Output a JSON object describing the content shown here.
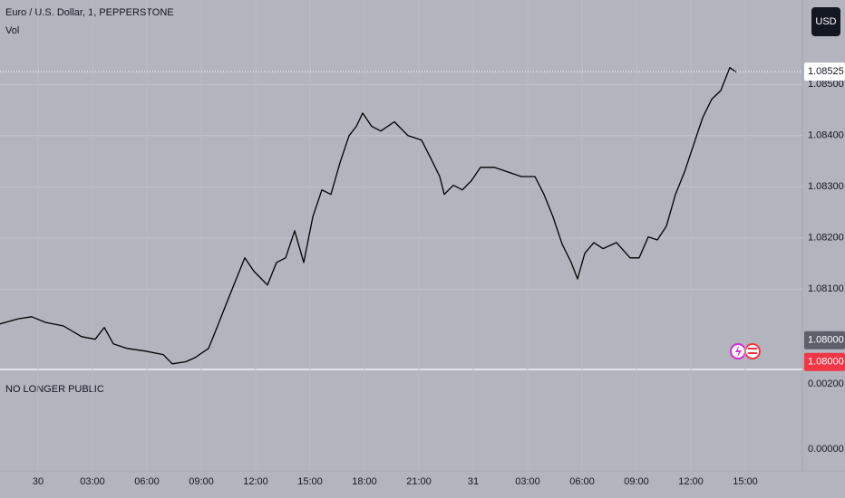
{
  "chart_data": {
    "type": "line",
    "title": "Euro / U.S. Dollar, 1, PEPPERSTONE",
    "subtitle": "Vol",
    "currency": "USD",
    "color": "#000000",
    "grid": true,
    "xlim": [
      -2.1,
      42.15
    ],
    "ylim": [
      1.07943,
      1.08665
    ],
    "xticks": [
      {
        "value": 0,
        "label": "30"
      },
      {
        "value": 3,
        "label": "03:00"
      },
      {
        "value": 6,
        "label": "06:00"
      },
      {
        "value": 9,
        "label": "09:00"
      },
      {
        "value": 12,
        "label": "12:00"
      },
      {
        "value": 15,
        "label": "15:00"
      },
      {
        "value": 18,
        "label": "18:00"
      },
      {
        "value": 21,
        "label": "21:00"
      },
      {
        "value": 24,
        "label": "31"
      },
      {
        "value": 27,
        "label": "03:00"
      },
      {
        "value": 30,
        "label": "06:00"
      },
      {
        "value": 33,
        "label": "09:00"
      },
      {
        "value": 36,
        "label": "12:00"
      },
      {
        "value": 39,
        "label": "15:00"
      }
    ],
    "yticks": [
      {
        "value": 1.081,
        "label": "1.08100"
      },
      {
        "value": 1.082,
        "label": "1.08200"
      },
      {
        "value": 1.083,
        "label": "1.08300"
      },
      {
        "value": 1.084,
        "label": "1.08400"
      },
      {
        "value": 1.085,
        "label": "1.08500"
      }
    ],
    "price_labels": [
      {
        "value": 1.08525,
        "label": "1.08525",
        "color": "#ffffff"
      },
      {
        "value": 1.08,
        "label": "1.08000",
        "color": "#5d606b"
      },
      {
        "value": 1.08,
        "label": "1.08000",
        "color": "#f23645"
      }
    ],
    "x": [
      -2.1,
      -1.1,
      -0.35,
      0.4,
      1.4,
      2.4,
      3.15,
      3.65,
      4.15,
      4.9,
      5.9,
      6.9,
      7.4,
      8.15,
      8.65,
      9.4,
      9.9,
      10.4,
      11,
      11.4,
      11.9,
      12.65,
      13.15,
      13.65,
      14.15,
      14.65,
      15.15,
      15.65,
      16.15,
      16.65,
      17.15,
      17.55,
      17.9,
      18.4,
      18.9,
      19.65,
      20.4,
      21.15,
      21.65,
      22.15,
      22.4,
      22.9,
      23.4,
      23.9,
      24.4,
      25.15,
      25.9,
      26.65,
      27.4,
      27.9,
      28.4,
      28.9,
      29.4,
      29.75,
      30.15,
      30.65,
      31.15,
      31.9,
      32.65,
      33.15,
      33.65,
      34.15,
      34.65,
      35.15,
      35.65,
      36.15,
      36.65,
      37.15,
      37.65,
      38.15,
      38.5
    ],
    "values": [
      1.08032,
      1.08042,
      1.08046,
      1.08035,
      1.08028,
      1.08007,
      1.08002,
      1.08025,
      1.07993,
      1.07984,
      1.07979,
      1.07972,
      1.07954,
      1.07958,
      1.07966,
      1.07984,
      1.08028,
      1.08073,
      1.08126,
      1.08161,
      1.08135,
      1.08108,
      1.08152,
      1.08161,
      1.08214,
      1.08152,
      1.08241,
      1.08294,
      1.08285,
      1.08347,
      1.084,
      1.08418,
      1.08444,
      1.08418,
      1.08409,
      1.08427,
      1.084,
      1.08391,
      1.08356,
      1.0832,
      1.08285,
      1.08303,
      1.08294,
      1.08312,
      1.08338,
      1.08338,
      1.08329,
      1.0832,
      1.0832,
      1.08285,
      1.08241,
      1.08188,
      1.08152,
      1.0812,
      1.0817,
      1.08191,
      1.08179,
      1.08191,
      1.08161,
      1.08161,
      1.08202,
      1.08196,
      1.08223,
      1.08285,
      1.08329,
      1.08382,
      1.08435,
      1.08471,
      1.08488,
      1.08533,
      1.08524
    ],
    "lower_pane": {
      "title": "NO LONGER PUBLIC",
      "ylim": [
        -0.00067,
        0.00244
      ],
      "yticks": [
        {
          "value": 0.002,
          "label": "0.00200"
        },
        {
          "value": 0,
          "label": "0.00000"
        }
      ]
    }
  }
}
